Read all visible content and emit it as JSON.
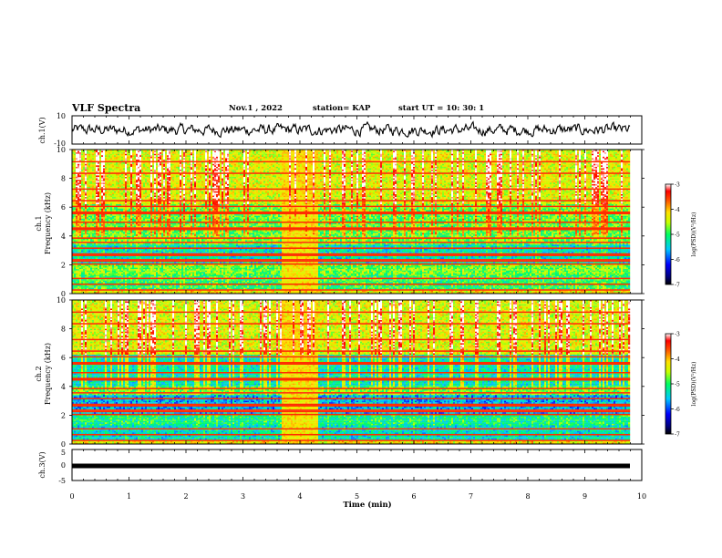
{
  "header": {
    "title": "VLF Spectra",
    "date": "Nov.1 , 2022",
    "station": "station= KAP",
    "start": "start UT = 10: 30: 1"
  },
  "chart_data": [
    {
      "type": "line",
      "ylabel": "ch.1(V)",
      "ylim": [
        -10,
        10
      ],
      "yticks": [
        "10",
        "-10"
      ],
      "xlim": [
        0,
        10
      ],
      "description_series": "noisy waveform around 0 V"
    },
    {
      "type": "heatmap",
      "ylabel": "ch.1\nFrequency (kHz)",
      "ylabel_lines": [
        "ch.1",
        "Frequency (kHz)"
      ],
      "ylim": [
        0,
        10
      ],
      "yticks": [
        "0",
        "2",
        "4",
        "6",
        "8",
        "10"
      ],
      "xlim": [
        0,
        10
      ],
      "colorbar": {
        "label": "log(PSD)(V²/Hz)",
        "range": [
          -7,
          -3
        ],
        "ticks": [
          "-3",
          "-4",
          "-5",
          "-6",
          "-7"
        ]
      }
    },
    {
      "type": "heatmap",
      "ylabel": "ch.2\nFrequency (kHz)",
      "ylabel_lines": [
        "ch.2",
        "Frequency (kHz)"
      ],
      "ylim": [
        0,
        10
      ],
      "yticks": [
        "0",
        "2",
        "4",
        "6",
        "8",
        "10"
      ],
      "xlim": [
        0,
        10
      ],
      "colorbar": {
        "label": "log(PSD)(V²/Hz)",
        "range": [
          -7,
          -3
        ],
        "ticks": [
          "-3",
          "-4",
          "-5",
          "-6",
          "-7"
        ]
      }
    },
    {
      "type": "line",
      "ylabel": "ch.3(V)",
      "ylim": [
        -5,
        5
      ],
      "yticks": [
        "5",
        "0",
        "-5"
      ],
      "xlim": [
        0,
        10
      ],
      "xlabel": "Time (min)",
      "xticks": [
        "0",
        "1",
        "2",
        "3",
        "4",
        "5",
        "6",
        "7",
        "8",
        "9",
        "10"
      ],
      "constant_value": -0.3
    }
  ]
}
